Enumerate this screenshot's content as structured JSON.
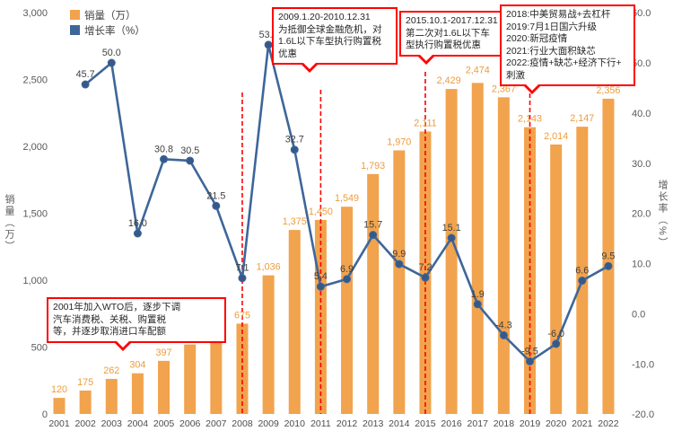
{
  "chart_data": {
    "type": "combo",
    "title": "",
    "categories": [
      "2001",
      "2002",
      "2003",
      "2004",
      "2005",
      "2006",
      "2007",
      "2008",
      "2009",
      "2010",
      "2011",
      "2012",
      "2013",
      "2014",
      "2015",
      "2016",
      "2017",
      "2018",
      "2019",
      "2020",
      "2021",
      "2022"
    ],
    "series": [
      {
        "name": "销量（万）",
        "kind": "bar",
        "axis": "left",
        "color": "#F1A34D",
        "values": [
          120,
          175,
          262,
          304,
          397,
          519,
          630,
          675,
          1036,
          1375,
          1450,
          1549,
          1793,
          1970,
          2111,
          2429,
          2474,
          2367,
          2143,
          2014,
          2147,
          2356
        ]
      },
      {
        "name": "增长率（%）",
        "kind": "line",
        "axis": "right",
        "color": "#3E6699",
        "values": [
          null,
          45.7,
          50.0,
          16.0,
          30.8,
          30.5,
          21.5,
          7.1,
          53.6,
          32.7,
          5.4,
          6.9,
          15.7,
          9.9,
          7.2,
          15.1,
          1.9,
          -4.3,
          -9.5,
          -6.0,
          6.6,
          9.5
        ]
      }
    ],
    "left_axis": {
      "title": "销量（万）",
      "min": 0,
      "max": 3000,
      "step": 500
    },
    "right_axis": {
      "title": "增长率（%）",
      "min": -20,
      "max": 60,
      "step": 10
    },
    "dashed_year_markers": [
      "2008",
      "2011",
      "2015",
      "2019"
    ],
    "grid": false,
    "legend_position": "top-left"
  },
  "annotations": [
    {
      "id": "wto",
      "text": "2001年加入WTO后，逐步下调\n汽车消费税、关税、购置税\n等，并逐步取消进口车配额"
    },
    {
      "id": "2009",
      "text": "2009.1.20-2010.12.31\n为抵御全球金融危机，对\n1.6L以下车型执行购置税\n优惠"
    },
    {
      "id": "2015",
      "text": "2015.10.1-2017.12.31\n第二次对1.6L以下车\n型执行购置税优惠"
    },
    {
      "id": "2018",
      "text": "2018:中美贸易战+去杠杆\n2019:7月1日国六升级\n2020:新冠疫情\n2021:行业大面积缺芯\n2022:疫情+缺芯+经济下行+\n刺激"
    }
  ],
  "colors": {
    "bar": "#F1A34D",
    "bar_label": "#ED9C3B",
    "line": "#3E6699",
    "marker": "#35598A",
    "annotation": "#FF0000",
    "axis_text": "#595959",
    "point_label_text": "#3F3F3F"
  }
}
